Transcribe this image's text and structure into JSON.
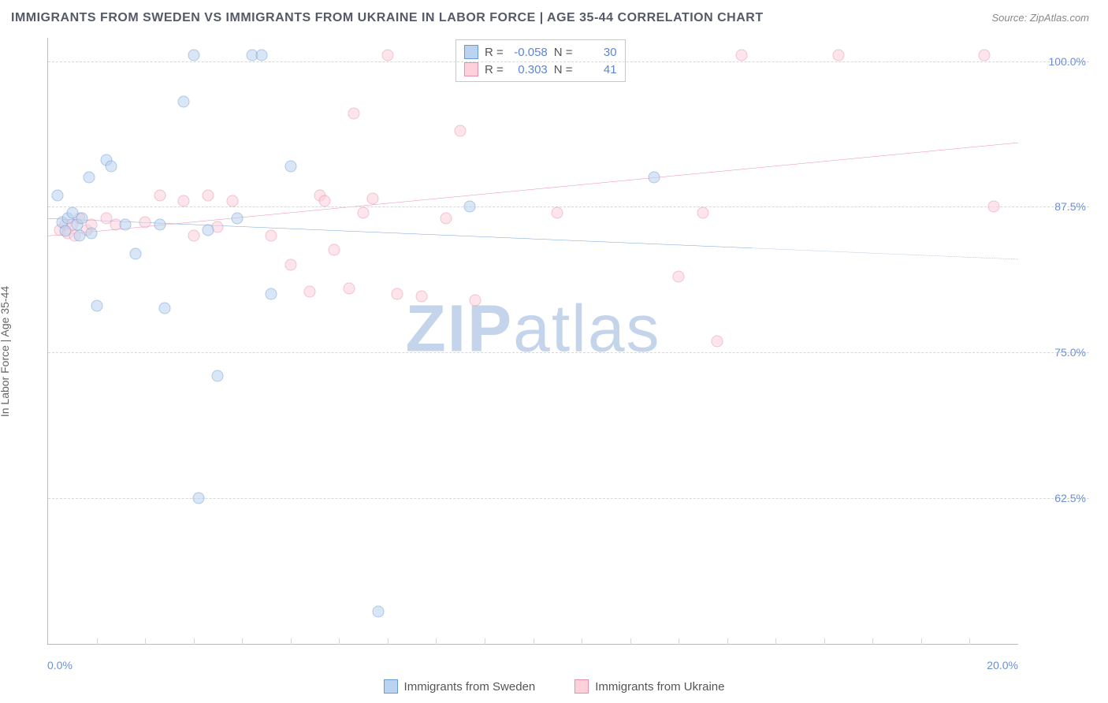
{
  "header": {
    "title": "IMMIGRANTS FROM SWEDEN VS IMMIGRANTS FROM UKRAINE IN LABOR FORCE | AGE 35-44 CORRELATION CHART",
    "source": "Source: ZipAtlas.com"
  },
  "y_axis": {
    "label": "In Labor Force | Age 35-44"
  },
  "chart": {
    "type": "scatter",
    "xlim": [
      0,
      20
    ],
    "ylim": [
      50,
      102
    ],
    "x_ticks": [
      0,
      20
    ],
    "x_tick_labels": [
      "0.0%",
      "20.0%"
    ],
    "y_gridlines": [
      62.5,
      75.0,
      87.5,
      100.0
    ],
    "y_tick_labels": [
      "62.5%",
      "75.0%",
      "87.5%",
      "100.0%"
    ],
    "x_minor_ticks": [
      1,
      2,
      3,
      4,
      5,
      6,
      7,
      8,
      9,
      10,
      11,
      12,
      13,
      14,
      15,
      16,
      17,
      18,
      19
    ],
    "grid_color": "#d8d8d8",
    "background_color": "#ffffff",
    "marker_size": 15,
    "marker_opacity": 0.55
  },
  "series": {
    "sweden": {
      "label": "Immigrants from Sweden",
      "color_fill": "#b9d3f0",
      "color_stroke": "#6a9bd8",
      "trend_color": "#3a78c8",
      "trend": {
        "x1": 0,
        "y1": 86.5,
        "x2": 20,
        "y2": 83.0,
        "solid_until_x": 14.5
      },
      "R": "-0.058",
      "N": "30",
      "points": [
        [
          0.2,
          88.5
        ],
        [
          0.3,
          86.2
        ],
        [
          0.35,
          85.4
        ],
        [
          0.4,
          86.5
        ],
        [
          0.5,
          87.0
        ],
        [
          0.6,
          86.0
        ],
        [
          0.65,
          85.0
        ],
        [
          0.7,
          86.5
        ],
        [
          0.85,
          90.0
        ],
        [
          0.9,
          85.2
        ],
        [
          1.0,
          79.0
        ],
        [
          1.2,
          91.5
        ],
        [
          1.3,
          91.0
        ],
        [
          1.6,
          86.0
        ],
        [
          1.8,
          83.5
        ],
        [
          2.3,
          86.0
        ],
        [
          2.4,
          78.8
        ],
        [
          2.8,
          96.5
        ],
        [
          3.0,
          100.5
        ],
        [
          3.1,
          62.5
        ],
        [
          3.3,
          85.5
        ],
        [
          3.5,
          73.0
        ],
        [
          3.9,
          86.5
        ],
        [
          4.2,
          100.5
        ],
        [
          4.4,
          100.5
        ],
        [
          4.6,
          80.0
        ],
        [
          5.0,
          91.0
        ],
        [
          6.8,
          52.8
        ],
        [
          8.7,
          87.5
        ],
        [
          12.5,
          90.0
        ]
      ]
    },
    "ukraine": {
      "label": "Immigrants from Ukraine",
      "color_fill": "#fcd1db",
      "color_stroke": "#e690aa",
      "trend_color": "#e85a8a",
      "trend": {
        "x1": 0,
        "y1": 85.0,
        "x2": 20,
        "y2": 93.0,
        "solid_until_x": 20
      },
      "R": "0.303",
      "N": "41",
      "points": [
        [
          0.25,
          85.5
        ],
        [
          0.35,
          86.0
        ],
        [
          0.4,
          85.2
        ],
        [
          0.5,
          86.0
        ],
        [
          0.55,
          85.0
        ],
        [
          0.65,
          86.5
        ],
        [
          0.8,
          85.5
        ],
        [
          0.9,
          86.0
        ],
        [
          1.2,
          86.5
        ],
        [
          1.4,
          86.0
        ],
        [
          2.0,
          86.2
        ],
        [
          2.3,
          88.5
        ],
        [
          2.8,
          88.0
        ],
        [
          3.0,
          85.0
        ],
        [
          3.3,
          88.5
        ],
        [
          3.5,
          85.8
        ],
        [
          3.8,
          88.0
        ],
        [
          4.6,
          85.0
        ],
        [
          5.0,
          82.5
        ],
        [
          5.4,
          80.2
        ],
        [
          5.6,
          88.5
        ],
        [
          5.7,
          88.0
        ],
        [
          5.9,
          83.8
        ],
        [
          6.2,
          80.5
        ],
        [
          6.3,
          95.5
        ],
        [
          6.5,
          87.0
        ],
        [
          6.7,
          88.2
        ],
        [
          7.0,
          100.5
        ],
        [
          7.2,
          80.0
        ],
        [
          7.7,
          79.8
        ],
        [
          8.2,
          86.5
        ],
        [
          8.5,
          94.0
        ],
        [
          8.8,
          79.5
        ],
        [
          10.5,
          87.0
        ],
        [
          13.0,
          81.5
        ],
        [
          13.5,
          87.0
        ],
        [
          13.8,
          76.0
        ],
        [
          14.3,
          100.5
        ],
        [
          16.3,
          100.5
        ],
        [
          19.3,
          100.5
        ],
        [
          19.5,
          87.5
        ]
      ]
    }
  },
  "stats_box": {
    "label_R": "R =",
    "label_N": "N ="
  },
  "watermark": {
    "zip": "ZIP",
    "atlas": "atlas"
  },
  "legend_bottom": {
    "sweden": "Immigrants from Sweden",
    "ukraine": "Immigrants from Ukraine"
  }
}
